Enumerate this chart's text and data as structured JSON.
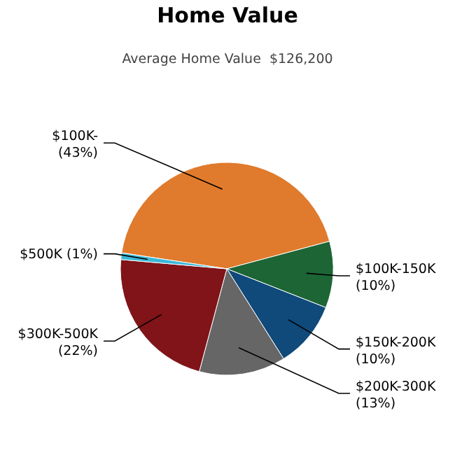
{
  "chart_data": {
    "type": "pie",
    "title": "Home Value",
    "subtitle": "Average Home Value  $126,200",
    "categories": [
      "$100K-",
      "$100K-150K",
      "$150K-200K",
      "$200K-300K",
      "$300K-500K",
      "$500K"
    ],
    "values": [
      43,
      10,
      10,
      13,
      22,
      1
    ],
    "value_labels": [
      "(43%)",
      "(10%)",
      "(10%)",
      "(13%)",
      "(22%)",
      "(1%)"
    ],
    "colors": [
      "#e07a2c",
      "#1d6535",
      "#0f4a7a",
      "#666666",
      "#801419",
      "#3ab8d8"
    ]
  }
}
